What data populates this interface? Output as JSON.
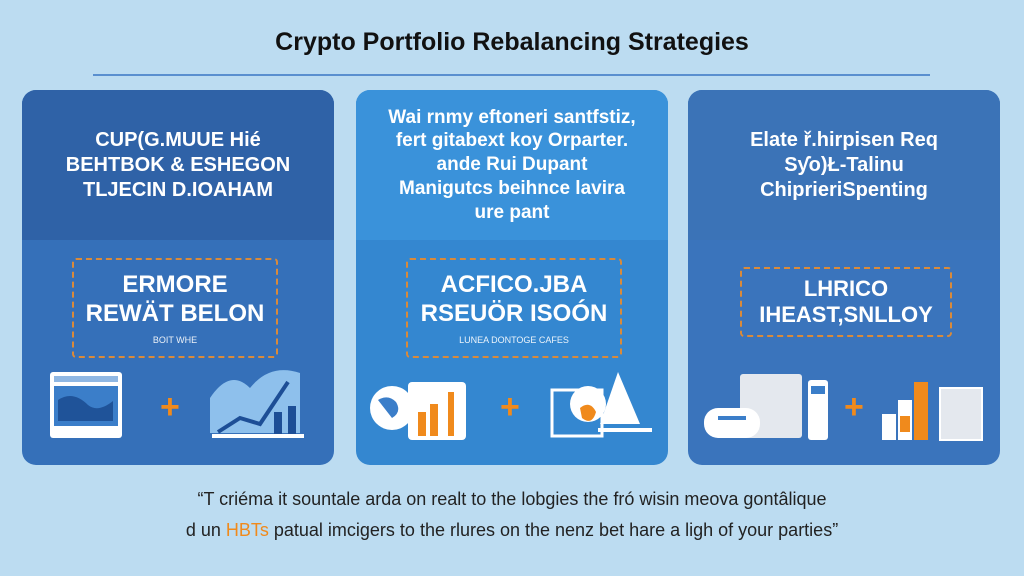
{
  "title": "Crypto Portfolio Rebalancing Strategies",
  "colors": {
    "background": "#bcdcf1",
    "accent": "#f08a1c",
    "card_dark": "#2f63a8",
    "card_light": "#3a8fd6"
  },
  "cards": [
    {
      "heading": "CUP(G.MUUE Hié\nBEHTBOK & ESHEGON\nTLJECIN D.IOAHAM",
      "box_title": "ERMORE\nREWÄT BELON",
      "box_sub": "BOIT WHE",
      "icons": [
        "browser-map-icon",
        "plus-icon",
        "growth-chart-icon"
      ]
    },
    {
      "heading": "Wai rnmy eftoneri santfstiz,\nfert gitabext koy Orparter.\nande Rui Dupant\nManigutcs beihnce lavira\nure pant",
      "box_title": "ACFICO.JBA\nRSEUÖR ISOÓN",
      "box_sub": "LUNEA DONTOGE CAFES",
      "icons": [
        "globe-dashboard-icon",
        "plus-icon",
        "analytics-scale-icon"
      ]
    },
    {
      "heading": "Elate ř.hirpisen Req\nSƴo)Ł-Talinu\nChiprieriSpenting",
      "box_title": "LHRICO\nIHEAST,SNLLOY",
      "box_sub": "",
      "icons": [
        "devices-icon",
        "plus-icon",
        "bar-chart-icon"
      ]
    }
  ],
  "quote": {
    "line1": "“T criéma it sountale arda on realt to the lobgies the fró wisin meova gontâlique",
    "line2_pre": "d un ",
    "line2_highlight": "HBTs",
    "line2_post": " patual imcigers to the rlures on the nenz bet hare a ligh of your parties”"
  }
}
